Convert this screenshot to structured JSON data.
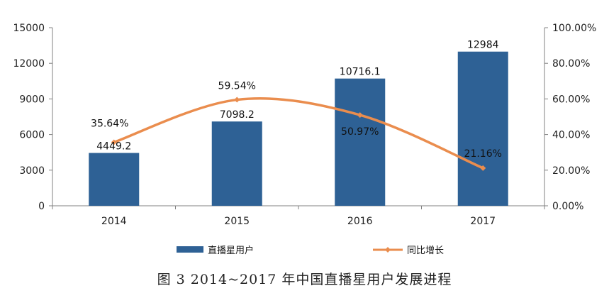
{
  "chart_data": {
    "type": "bar",
    "categories": [
      "2014",
      "2015",
      "2016",
      "2017"
    ],
    "series": [
      {
        "name": "直播星用户",
        "type": "bar",
        "axis": "left",
        "values": [
          4449.2,
          7098.2,
          10716.1,
          12984
        ],
        "labels": [
          "4449.2",
          "7098.2",
          "10716.1",
          "12984"
        ]
      },
      {
        "name": "同比增长",
        "type": "line",
        "axis": "right",
        "values": [
          35.64,
          59.54,
          50.97,
          21.16
        ],
        "labels": [
          "35.64%",
          "59.54%",
          "50.97%",
          "21.16%"
        ]
      }
    ],
    "ylim_left": [
      0,
      15000
    ],
    "ylim_right": [
      0,
      100
    ],
    "left_ticks": [
      "0",
      "3000",
      "6000",
      "9000",
      "12000",
      "15000"
    ],
    "right_ticks": [
      "0.00%",
      "20.00%",
      "40.00%",
      "60.00%",
      "80.00%",
      "100.00%"
    ],
    "grid": false,
    "legend_position": "bottom",
    "colors": {
      "bar": "#2E6195",
      "line": "#EA8D4E",
      "axis": "#808080"
    }
  },
  "caption": "图 3  2014~2017 年中国直播星用户发展进程"
}
